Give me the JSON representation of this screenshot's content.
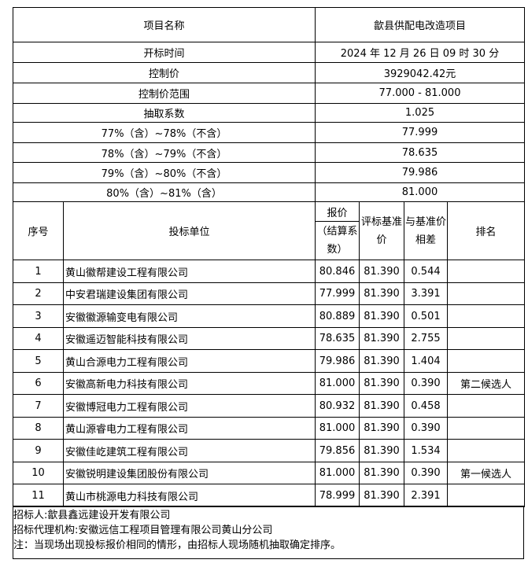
{
  "info": [
    {
      "label": "项目名称",
      "value": "歙县供配电改造项目"
    },
    {
      "label": "开标时间",
      "value": "2024 年 12 月 26 日 09 时 30 分"
    },
    {
      "label": "控制价",
      "value": "3929042.42元"
    },
    {
      "label": "控制价范围",
      "value": "77.000 - 81.000"
    },
    {
      "label": "抽取系数",
      "value": "1.025"
    },
    {
      "label": "77%（含）~78%（不含）",
      "value": "77.999"
    },
    {
      "label": "78%（含）~79%（不含）",
      "value": "78.635"
    },
    {
      "label": "79%（含）~80%（不含）",
      "value": "79.986"
    },
    {
      "label": "80%（含）~81%（含）",
      "value": "81.000"
    }
  ],
  "headers": {
    "no": "序号",
    "bidder": "投标单位",
    "price_top": "报价",
    "price_sub": "（结算系数）",
    "base": "评标基准价",
    "diff": "与基准价相差",
    "rank": "排名"
  },
  "rows": [
    [
      "1",
      "黄山徽帮建设工程有限公司",
      "80.846",
      "81.390",
      "0.544",
      ""
    ],
    [
      "2",
      "中安君瑞建设集团有限公司",
      "77.999",
      "81.390",
      "3.391",
      ""
    ],
    [
      "3",
      "安徽徽源输变电有限公司",
      "80.889",
      "81.390",
      "0.501",
      ""
    ],
    [
      "4",
      "安徽遥迈智能科技有限公司",
      "78.635",
      "81.390",
      "2.755",
      ""
    ],
    [
      "5",
      "黄山合源电力工程有限公司",
      "79.986",
      "81.390",
      "1.404",
      ""
    ],
    [
      "6",
      "安徽高新电力科技有限公司",
      "81.000",
      "81.390",
      "0.390",
      "第二候选人"
    ],
    [
      "7",
      "安徽博冠电力工程有限公司",
      "80.932",
      "81.390",
      "0.458",
      ""
    ],
    [
      "8",
      "黄山源睿电力工程有限公司",
      "81.000",
      "81.390",
      "0.390",
      ""
    ],
    [
      "9",
      "安徽佳屹建筑工程有限公司",
      "79.856",
      "81.390",
      "1.534",
      ""
    ],
    [
      "10",
      "安徽锐明建设集团股份有限公司",
      "81.000",
      "81.390",
      "0.390",
      "第一候选人"
    ],
    [
      "11",
      "黄山市桃源电力科技有限公司",
      "78.999",
      "81.390",
      "2.391",
      ""
    ]
  ],
  "footer": [
    "招标人:歙县鑫远建设开发有限公司",
    "招标代理机构:安徽远信工程项目管理有限公司黄山分公司",
    "注：当现场出现投标报价相同的情形，由招标人现场随机抽取确定排序。"
  ]
}
